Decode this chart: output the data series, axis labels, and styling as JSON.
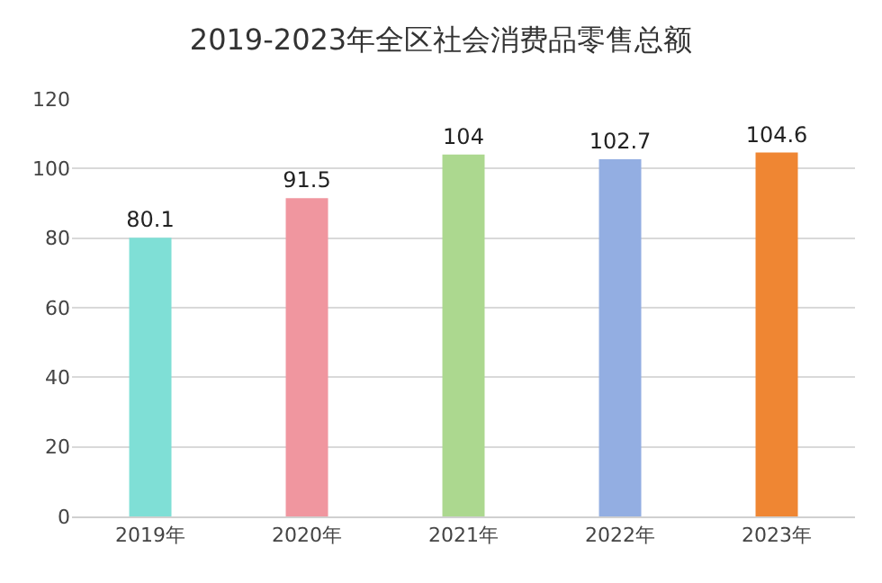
{
  "chart_data": {
    "type": "bar",
    "title": "2019-2023年全区社会消费品零售总额",
    "categories": [
      "2019年",
      "2020年",
      "2021年",
      "2022年",
      "2023年"
    ],
    "values": [
      80.1,
      91.5,
      104,
      102.7,
      104.6
    ],
    "colors": [
      "#7fdfd6",
      "#f0969f",
      "#acd88f",
      "#93aee2",
      "#ef8633"
    ],
    "ylim": [
      0,
      120
    ],
    "yticks": [
      0,
      20,
      40,
      60,
      80,
      100,
      120
    ],
    "grid": "y",
    "data_labels": true
  }
}
